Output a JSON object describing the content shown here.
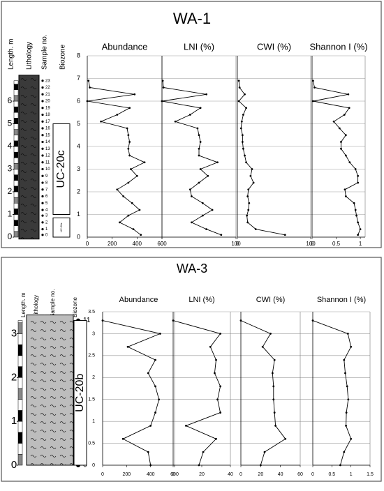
{
  "panels": [
    {
      "title": "WA-1",
      "headers": [
        "Length. m",
        "Lithology",
        "Sample no.",
        "Biozone"
      ],
      "length_ticks": [
        0,
        1,
        2,
        3,
        4,
        5,
        6
      ],
      "samples": [
        0,
        1,
        2,
        3,
        4,
        5,
        6,
        7,
        8,
        9,
        10,
        11,
        12,
        13,
        14,
        15,
        16,
        17,
        18,
        19,
        20,
        21,
        22,
        23
      ],
      "heights": [
        0.1,
        0.35,
        0.65,
        0.95,
        1.2,
        1.5,
        1.8,
        2.1,
        2.4,
        2.7,
        3.0,
        3.3,
        3.6,
        3.9,
        4.2,
        4.5,
        4.8,
        5.1,
        5.4,
        5.7,
        6.0,
        6.3,
        6.6,
        6.9
      ],
      "biozones": [
        {
          "label": "UC-20c",
          "from": 1,
          "to": 5
        },
        {
          "label": "UC-20a",
          "from": 0,
          "to": 0.85
        }
      ],
      "ylim": [
        0,
        8
      ],
      "yticks": [
        0,
        1,
        2,
        3,
        4,
        5,
        6,
        7,
        8
      ]
    },
    {
      "title": "WA-3",
      "headers": [
        "Length. m",
        "Lithology",
        "Sample no.",
        "Biozone"
      ],
      "length_ticks": [
        0,
        1,
        2,
        3
      ],
      "samples": [
        0,
        1,
        2,
        3,
        4,
        5,
        6,
        7,
        8,
        9,
        null,
        11
      ],
      "heights": [
        0,
        0.3,
        0.6,
        0.9,
        1.2,
        1.5,
        1.8,
        2.1,
        2.4,
        2.7,
        3.0,
        3.3
      ],
      "biozones": [
        {
          "label": "UC-20b",
          "from": 0,
          "to": 3.3
        }
      ],
      "ylim": [
        0,
        3.5
      ],
      "yticks": [
        0,
        0.5,
        1,
        1.5,
        2,
        2.5,
        3,
        3.5
      ]
    }
  ],
  "chart_data": [
    {
      "type": "line",
      "panel": 0,
      "title": "Abundance",
      "xlim": [
        0,
        600
      ],
      "xticks": [
        0,
        200,
        400,
        600
      ],
      "values": [
        430,
        370,
        260,
        330,
        420,
        360,
        290,
        240,
        330,
        400,
        350,
        460,
        340,
        330,
        340,
        330,
        320,
        110,
        240,
        340,
        0,
        380,
        20,
        10
      ]
    },
    {
      "type": "line",
      "panel": 0,
      "title": "LNI (%)",
      "xlim": [
        0,
        100
      ],
      "xticks": [
        0,
        100
      ],
      "values": [
        80,
        60,
        40,
        55,
        68,
        55,
        40,
        38,
        50,
        62,
        52,
        75,
        50,
        50,
        52,
        50,
        48,
        18,
        38,
        52,
        0,
        60,
        2,
        1
      ]
    },
    {
      "type": "line",
      "panel": 0,
      "title": "CWI (%)",
      "xlim": [
        0,
        100
      ],
      "xticks": [
        0,
        100
      ],
      "values": [
        65,
        25,
        14,
        13,
        15,
        16,
        14,
        15,
        22,
        18,
        20,
        12,
        10,
        8,
        7,
        7,
        5,
        6,
        8,
        12,
        2,
        10,
        3,
        2
      ]
    },
    {
      "type": "line",
      "panel": 0,
      "title": "Shannon I (%)",
      "xlim": [
        0,
        1.1
      ],
      "xticks": [
        0,
        0.5,
        1
      ],
      "values": [
        0.95,
        1.0,
        0.95,
        0.92,
        0.9,
        0.87,
        0.7,
        0.68,
        0.95,
        0.95,
        0.9,
        0.78,
        0.7,
        0.6,
        0.6,
        0.7,
        0.57,
        0.45,
        0.67,
        0.77,
        0.02,
        0.75,
        0.05,
        0.02
      ]
    },
    {
      "type": "line",
      "panel": 1,
      "title": "Abundance",
      "xlim": [
        0,
        600
      ],
      "xticks": [
        0,
        200,
        400,
        600
      ],
      "values": [
        400,
        380,
        170,
        400,
        440,
        470,
        440,
        380,
        440,
        210,
        480,
        0
      ]
    },
    {
      "type": "line",
      "panel": 1,
      "title": "LNI (%)",
      "xlim": [
        0,
        40
      ],
      "xticks": [
        0,
        20,
        40
      ],
      "values": [
        18,
        21,
        30,
        9,
        33,
        31,
        33,
        29,
        30,
        26,
        33,
        0
      ]
    },
    {
      "type": "line",
      "panel": 1,
      "title": "CWI (%)",
      "xlim": [
        0,
        60
      ],
      "xticks": [
        0,
        20,
        40,
        60
      ],
      "values": [
        20,
        24,
        45,
        35,
        34,
        33,
        33,
        32,
        34,
        22,
        30,
        0
      ]
    },
    {
      "type": "line",
      "panel": 1,
      "title": "Shannon I (%)",
      "xlim": [
        0,
        1.5
      ],
      "xticks": [
        0,
        0.5,
        1,
        1.5
      ],
      "values": [
        0.72,
        0.82,
        1.0,
        0.87,
        0.88,
        0.93,
        0.9,
        0.85,
        0.82,
        1.0,
        0.92,
        0
      ]
    }
  ]
}
